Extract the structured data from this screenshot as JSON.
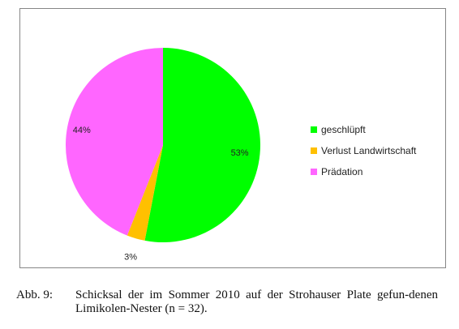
{
  "chart_data": {
    "type": "pie",
    "slices": [
      {
        "label": "geschlüpft",
        "value": 53,
        "display": "53%",
        "color": "#00ff00"
      },
      {
        "label": "Verlust Landwirtschaft",
        "value": 3,
        "display": "3%",
        "color": "#ffc000"
      },
      {
        "label": "Prädation",
        "value": 44,
        "display": "44%",
        "color": "#ff66ff"
      }
    ],
    "legend_position": "right"
  },
  "caption": {
    "label": "Abb. 9:",
    "text": "Schicksal der im Sommer 2010 auf der Strohauser Plate gefun-denen Limikolen-Nester (n = 32)."
  }
}
